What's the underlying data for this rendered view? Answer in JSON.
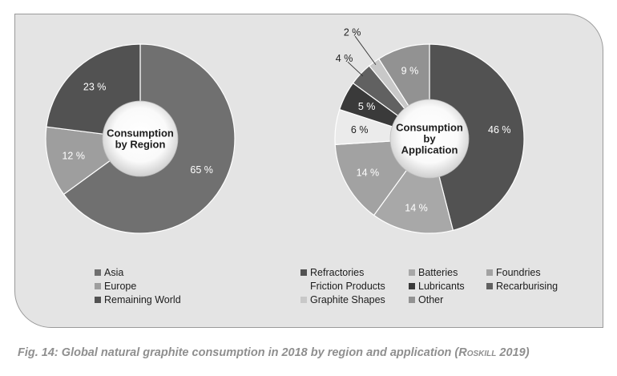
{
  "caption": {
    "text": "Fig. 14: Global natural graphite consumption in 2018 by region and application (",
    "source": "Roskill",
    "year": " 2019)"
  },
  "chart_data": [
    {
      "type": "pie",
      "center_label": [
        "Consumption",
        "by Region"
      ],
      "categories": [
        "Asia",
        "Europe",
        "Remaining World"
      ],
      "values": [
        65,
        12,
        23
      ],
      "value_labels": [
        "65 %",
        "12 %",
        "23 %"
      ],
      "colors": [
        "#707070",
        "#9e9e9e",
        "#525252"
      ],
      "legend": [
        "Asia",
        "Europe",
        "Remaining World"
      ],
      "legend_placement": "bottom"
    },
    {
      "type": "pie",
      "center_label": [
        "Consumption",
        "by",
        "Application"
      ],
      "categories": [
        "Refractories",
        "Batteries",
        "Foundries",
        "Friction Products",
        "Lubricants",
        "Recarburising",
        "Graphite Shapes",
        "Other"
      ],
      "values": [
        46,
        14,
        14,
        6,
        5,
        4,
        2,
        9
      ],
      "value_labels": [
        "46 %",
        "14 %",
        "14 %",
        "6 %",
        "5 %",
        "4 %",
        "2 %",
        "9 %"
      ],
      "colors": [
        "#525252",
        "#a8a8a8",
        "#a2a2a2",
        "#ebebeb",
        "#3a3a3a",
        "#616161",
        "#c8c8c8",
        "#929292"
      ],
      "legend": [
        "Refractories",
        "Batteries",
        "Foundries",
        "Friction Products",
        "Lubricants",
        "Recarburising",
        "Graphite Shapes",
        "Other"
      ],
      "legend_placement": "bottom"
    }
  ]
}
